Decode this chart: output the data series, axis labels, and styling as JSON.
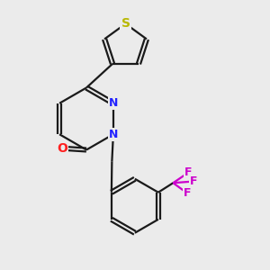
{
  "background_color": "#ebebeb",
  "bond_color": "#1a1a1a",
  "atom_colors": {
    "N": "#2222ff",
    "O": "#ff2020",
    "S": "#b8b800",
    "F": "#cc00cc",
    "C": "#1a1a1a"
  },
  "lw": 1.6,
  "doff": 0.07
}
